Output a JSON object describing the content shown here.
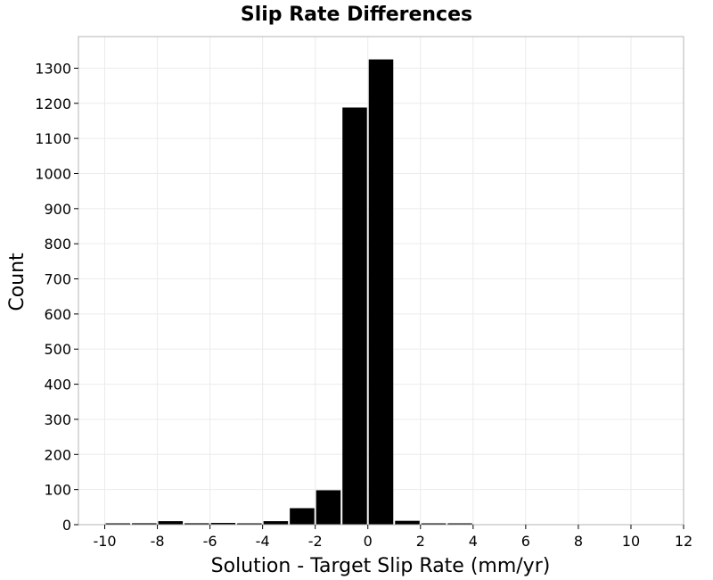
{
  "chart_data": {
    "type": "bar",
    "title": "Slip Rate Differences",
    "xlabel": "Solution - Target Slip Rate (mm/yr)",
    "ylabel": "Count",
    "xlim": [
      -11,
      12
    ],
    "ylim": [
      0,
      1390
    ],
    "x_ticks": [
      -10,
      -8,
      -6,
      -4,
      -2,
      0,
      2,
      4,
      6,
      8,
      10,
      12
    ],
    "y_ticks": [
      0,
      100,
      200,
      300,
      400,
      500,
      600,
      700,
      800,
      900,
      1000,
      1100,
      1200,
      1300
    ],
    "x_tick_labels": [
      "-10",
      "-8",
      "-6",
      "-4",
      "-2",
      "0",
      "2",
      "4",
      "6",
      "8",
      "10",
      "12"
    ],
    "y_tick_labels": [
      "0",
      "100",
      "200",
      "300",
      "400",
      "500",
      "600",
      "700",
      "800",
      "900",
      "1000",
      "1100",
      "1200",
      "1300"
    ],
    "bin_width": 1,
    "bin_centers": [
      -9.5,
      -8.5,
      -7.5,
      -6.5,
      -5.5,
      -4.5,
      -3.5,
      -2.5,
      -1.5,
      -0.5,
      0.5,
      1.5,
      2.5,
      3.5
    ],
    "values": [
      2,
      4,
      10,
      4,
      5,
      3,
      10,
      47,
      98,
      1188,
      1325,
      11,
      2,
      1
    ],
    "grid": true,
    "bar_color": "#000000",
    "grid_color": "#ebebeb",
    "frame_color": "#b4b4b4"
  }
}
